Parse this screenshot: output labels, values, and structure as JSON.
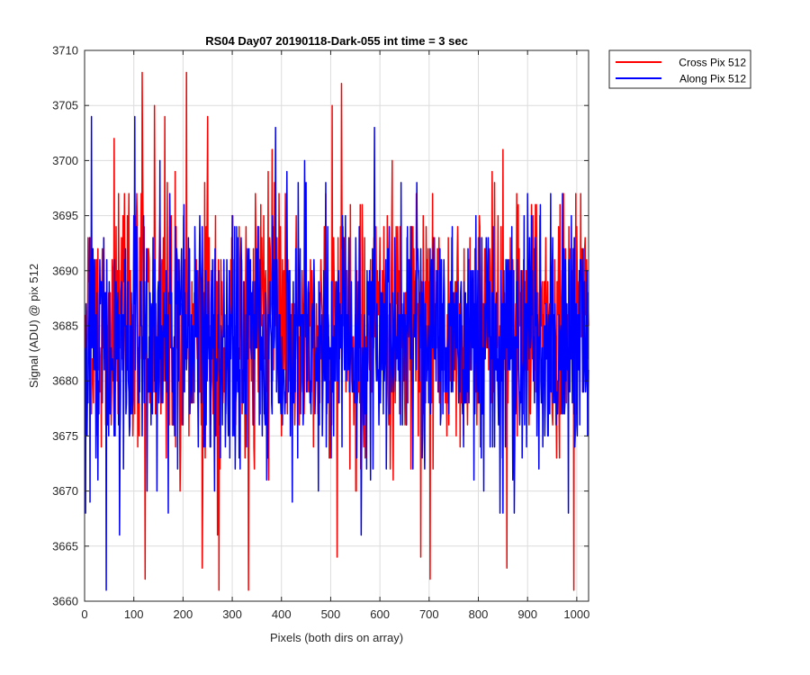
{
  "chart_data": {
    "type": "line",
    "title": "RS04 Day07 20190118-Dark-055 int time = 3 sec",
    "xlabel": "Pixels (both dirs on array)",
    "ylabel": "Signal (ADU) @ pix 512",
    "xlim": [
      0,
      1024
    ],
    "ylim": [
      3660,
      3710
    ],
    "xticks": [
      0,
      100,
      200,
      300,
      400,
      500,
      600,
      700,
      800,
      900,
      1000
    ],
    "yticks": [
      3660,
      3665,
      3670,
      3675,
      3680,
      3685,
      3690,
      3695,
      3700,
      3705,
      3710
    ],
    "grid": true,
    "legend_position": "outside-top-right",
    "series": [
      {
        "name": "Cross Pix 512",
        "color": "#ff0000",
        "x_start": 1,
        "x_step": 1,
        "count": 1024,
        "mean": 3685,
        "noise_range": [
          3661,
          3708
        ],
        "peaks": [
          [
            117,
            3708
          ],
          [
            207,
            3708
          ],
          [
            522,
            3707
          ],
          [
            503,
            3705
          ],
          [
            142,
            3705
          ],
          [
            250,
            3704
          ],
          [
            163,
            3704
          ],
          [
            60,
            3702
          ],
          [
            123,
            3662
          ],
          [
            702,
            3662
          ],
          [
            994,
            3661
          ],
          [
            273,
            3661
          ],
          [
            333,
            3661
          ],
          [
            270,
            3666
          ],
          [
            513,
            3664
          ],
          [
            239,
            3663
          ],
          [
            683,
            3664
          ],
          [
            858,
            3663
          ]
        ]
      },
      {
        "name": "Along Pix 512",
        "color": "#0000ff",
        "x_start": 1,
        "x_step": 1,
        "count": 1024,
        "mean": 3684,
        "noise_range": [
          3661,
          3704
        ],
        "peaks": [
          [
            14,
            3704
          ],
          [
            102,
            3704
          ],
          [
            388,
            3703
          ],
          [
            589,
            3703
          ],
          [
            44,
            3661
          ],
          [
            71,
            3666
          ],
          [
            562,
            3666
          ],
          [
            170,
            3668
          ],
          [
            983,
            3668
          ]
        ]
      }
    ]
  }
}
